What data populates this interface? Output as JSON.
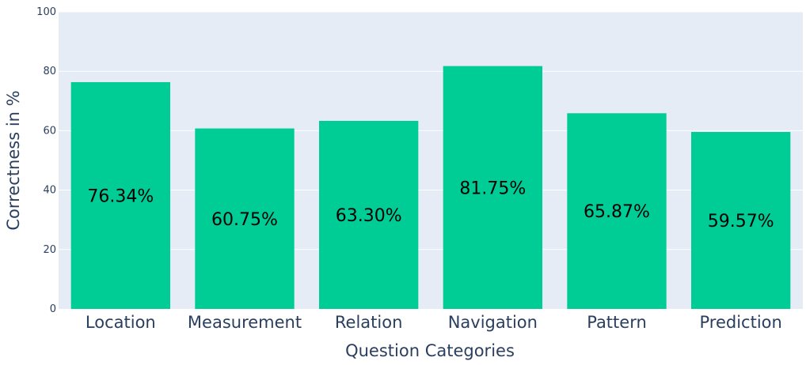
{
  "chart_data": {
    "type": "bar",
    "categories": [
      "Location",
      "Measurement",
      "Relation",
      "Navigation",
      "Pattern",
      "Prediction"
    ],
    "values": [
      76.34,
      60.75,
      63.3,
      81.75,
      65.87,
      59.57
    ],
    "data_labels": [
      "76.34%",
      "60.75%",
      "63.30%",
      "81.75%",
      "65.87%",
      "59.57%"
    ],
    "xlabel": "Question Categories",
    "ylabel": "Correctness in %",
    "ylim": [
      0,
      100
    ],
    "yticks": [
      0,
      20,
      40,
      60,
      80,
      100
    ],
    "grid": true,
    "colors": {
      "bar": "#00cc96",
      "plot_bg": "#e5ecf6",
      "grid": "#ffffff",
      "text": "#2a3f5f"
    }
  }
}
